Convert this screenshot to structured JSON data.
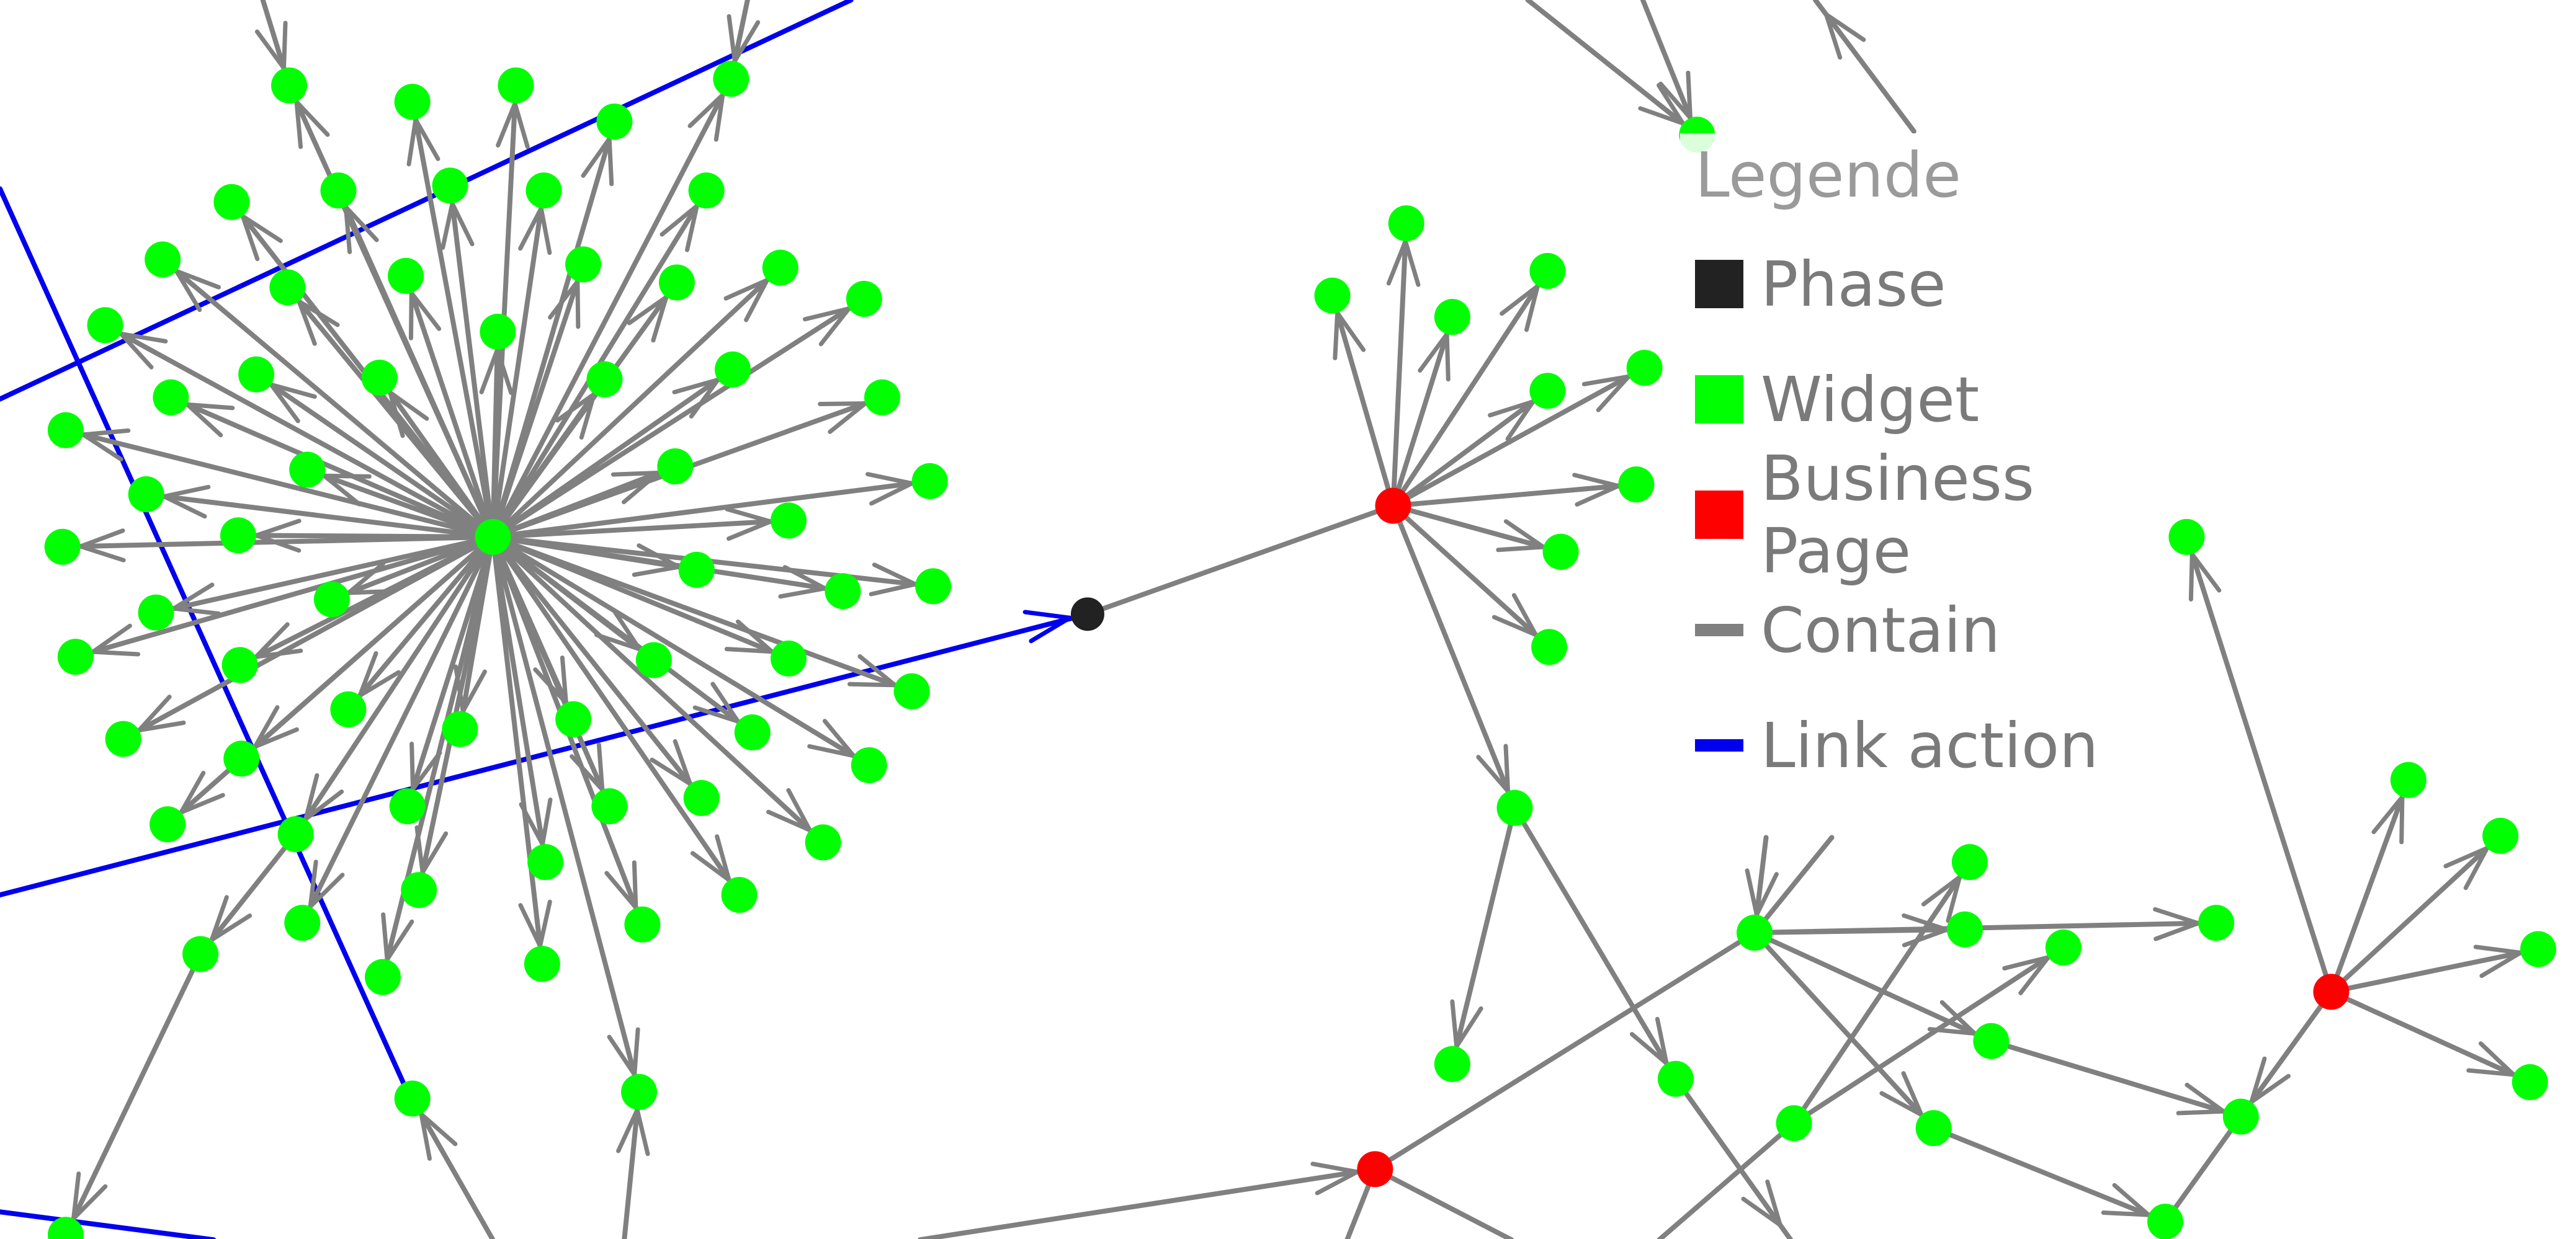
{
  "colors": {
    "phase": "#222222",
    "widget": "#00ff00",
    "business_page": "#ff0000",
    "contain": "#808080",
    "link_action": "#0000ee"
  },
  "legend": {
    "title": "Legende",
    "items": [
      {
        "label": "Phase",
        "kind": "square",
        "color": "#222222"
      },
      {
        "label": "Widget",
        "kind": "square",
        "color": "#00ff00"
      },
      {
        "label": "Business Page",
        "kind": "square",
        "color": "#ff0000"
      },
      {
        "label": "Contain",
        "kind": "line",
        "color": "#808080"
      },
      {
        "label": "Link action",
        "kind": "line",
        "color": "#0000ee"
      }
    ]
  }
}
